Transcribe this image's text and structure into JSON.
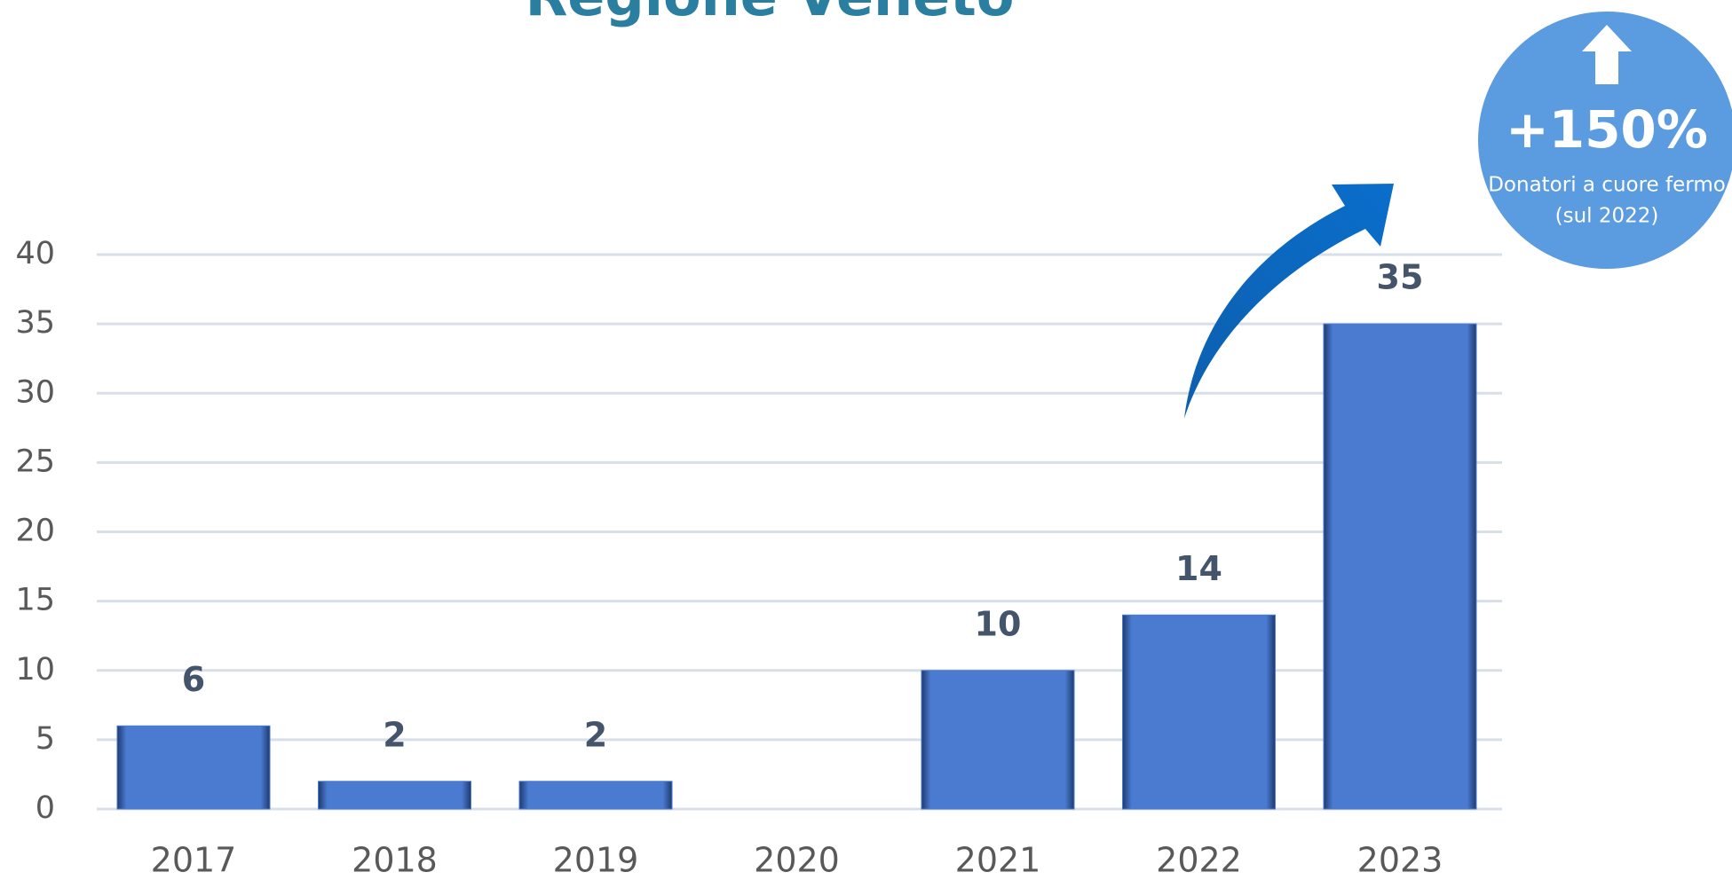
{
  "chart_data": {
    "type": "bar",
    "title": "Regione Veneto",
    "categories": [
      "2017",
      "2018",
      "2019",
      "2020",
      "2021",
      "2022",
      "2023"
    ],
    "values": [
      6,
      2,
      2,
      null,
      10,
      14,
      35
    ],
    "color": "#4a7bd0",
    "ylim": [
      0,
      40
    ],
    "yticks": [
      0,
      5,
      10,
      15,
      20,
      25,
      30,
      35,
      40
    ],
    "grid": true,
    "annotations": [
      "+150%",
      "Donatori a cuore fermo",
      "(sul 2022)"
    ]
  }
}
